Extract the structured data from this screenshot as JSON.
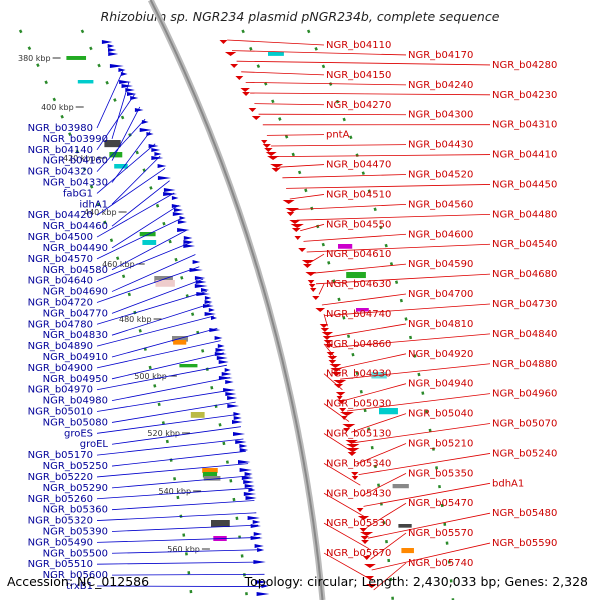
{
  "title": "Rhizobium sp. NGR234 plasmid pNGR234b, complete sequence",
  "footer": {
    "accession": "Accession: NC_012586",
    "topology": "Topology: circular; Length: 2,430,033 bp; Genes: 2,328"
  },
  "colors": {
    "forward": "#0000cc",
    "reverse": "#dd0000",
    "backbone": "#999999",
    "ticks": "#2a8a2a"
  },
  "ticks": [
    {
      "label": "380 kbp"
    },
    {
      "label": "400 kbp"
    },
    {
      "label": "420 kbp"
    },
    {
      "label": "440 kbp"
    },
    {
      "label": "460 kbp"
    },
    {
      "label": "480 kbp"
    },
    {
      "label": "500 kbp"
    },
    {
      "label": "520 kbp"
    },
    {
      "label": "540 kbp"
    },
    {
      "label": "560 kbp"
    }
  ],
  "left_labels": [
    "NGR_b03980",
    "NGR_b03990",
    "NGR_b04140",
    "NGR_b04160",
    "NGR_b04320",
    "NGR_b04330",
    "fabG1",
    "idhA1",
    "NGR_b04420",
    "NGR_b04460",
    "NGR_b04500",
    "NGR_b04490",
    "NGR_b04570",
    "NGR_b04580",
    "NGR_b04640",
    "NGR_b04690",
    "NGR_b04720",
    "NGR_b04770",
    "NGR_b04780",
    "NGR_b04830",
    "NGR_b04890",
    "NGR_b04910",
    "NGR_b04900",
    "NGR_b04950",
    "NGR_b04970",
    "NGR_b04980",
    "NGR_b05010",
    "NGR_b05080",
    "groES",
    "groEL",
    "NGR_b05170",
    "NGR_b05250",
    "NGR_b05220",
    "NGR_b05290",
    "NGR_b05260",
    "NGR_b05360",
    "NGR_b05320",
    "NGR_b05390",
    "NGR_b05490",
    "NGR_b05500",
    "NGR_b05510",
    "NGR_b05600",
    "trxB1"
  ],
  "right_labels": [
    "NGR_b04110",
    "NGR_b04170",
    "NGR_b04280",
    "NGR_b04150",
    "NGR_b04240",
    "NGR_b04230",
    "NGR_b04270",
    "NGR_b04300",
    "NGR_b04310",
    "pntA",
    "NGR_b04430",
    "NGR_b04410",
    "NGR_b04470",
    "NGR_b04520",
    "NGR_b04450",
    "NGR_b04510",
    "NGR_b04560",
    "NGR_b04480",
    "NGR_b04550",
    "NGR_b04600",
    "NGR_b04540",
    "NGR_b04610",
    "NGR_b04590",
    "NGR_b04680",
    "NGR_b04630",
    "NGR_b04700",
    "NGR_b04730",
    "NGR_b04740",
    "NGR_b04810",
    "NGR_b04840",
    "NGR_b04860",
    "NGR_b04920",
    "NGR_b04880",
    "NGR_b04930",
    "NGR_b04940",
    "NGR_b04960",
    "NGR_b05030",
    "NGR_b05040",
    "NGR_b05070",
    "NGR_b05130",
    "NGR_b05210",
    "NGR_b05240",
    "NGR_b05340",
    "NGR_b05350",
    "bdhA1",
    "NGR_b05430",
    "NGR_b05470",
    "NGR_b05480",
    "NGR_b05530",
    "NGR_b05570",
    "NGR_b05590",
    "NGR_b05670",
    "NGR_b05740"
  ]
}
